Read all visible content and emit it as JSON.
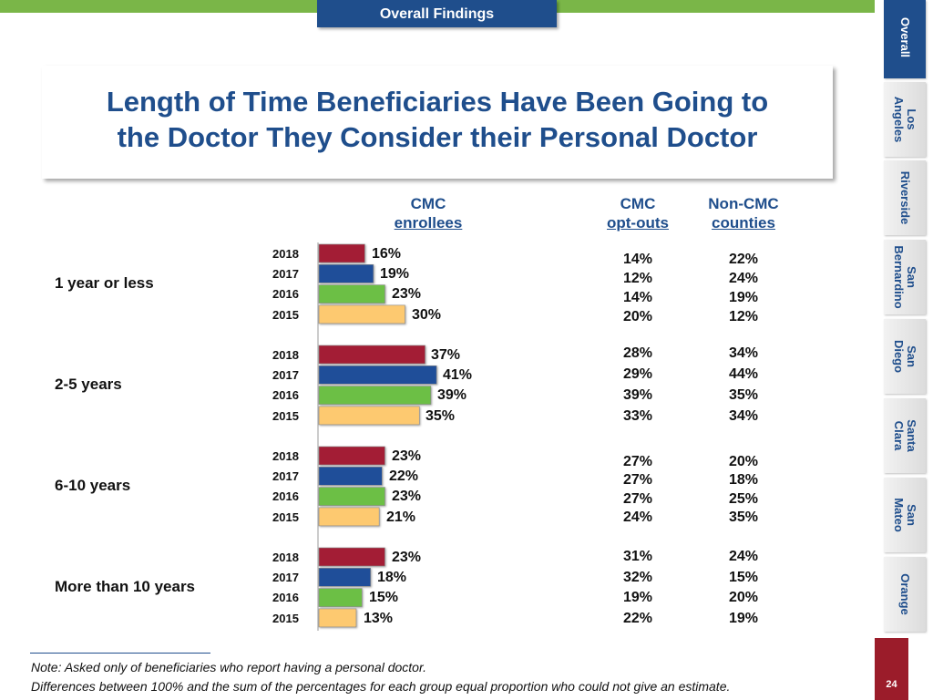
{
  "header": {
    "tab_label": "Overall Findings"
  },
  "side_tabs": [
    "Overall",
    "Los\nAngeles",
    "Riverside",
    "San\nBernardino",
    "San\nDiego",
    "Santa\nClara",
    "San\nMateo",
    "Orange"
  ],
  "title_line1": "Length of Time Beneficiaries Have Been Going to",
  "title_line2": "the Doctor They Consider their Personal Doctor",
  "columns": {
    "cmc_enrollees": {
      "line1": "CMC",
      "line2": "enrollees"
    },
    "cmc_optouts": {
      "line1": "CMC",
      "line2": "opt-outs"
    },
    "noncmc": {
      "line1": "Non-CMC",
      "line2": "counties"
    }
  },
  "colors": {
    "2018": "#a31d35",
    "2017": "#1f4e99",
    "2016": "#6cbf45",
    "2015": "#fdc970"
  },
  "page_number": "24",
  "note": {
    "line1": "Note: Asked only of beneficiaries who report having a personal doctor.",
    "line2": "Differences between 100% and the sum of the percentages for each group equal proportion who could not give an estimate."
  },
  "chart_data": {
    "type": "bar",
    "orientation": "horizontal",
    "title": "Length of Time Beneficiaries Have Been Going to the Doctor They Consider their Personal Doctor",
    "years": [
      "2018",
      "2017",
      "2016",
      "2015"
    ],
    "groups": [
      {
        "label": "1 year or less",
        "cmc_enrollees": [
          16,
          19,
          23,
          30
        ],
        "cmc_enrollees_labels": [
          "16%",
          "19%",
          "23%",
          "30%"
        ],
        "cmc_optouts": [
          "14%",
          "12%",
          "14%",
          "20%"
        ],
        "noncmc": [
          "22%",
          "24%",
          "19%",
          "12%"
        ]
      },
      {
        "label": "2-5 years",
        "cmc_enrollees": [
          37,
          41,
          39,
          35
        ],
        "cmc_enrollees_labels": [
          "37%",
          "41%",
          "39%",
          "35%"
        ],
        "cmc_optouts": [
          "28%",
          "29%",
          "39%",
          "33%"
        ],
        "noncmc": [
          "34%",
          "44%",
          "35%",
          "34%"
        ]
      },
      {
        "label": "6-10 years",
        "cmc_enrollees": [
          23,
          22,
          23,
          21
        ],
        "cmc_enrollees_labels": [
          "23%",
          "22%",
          "23%",
          "21%"
        ],
        "cmc_optouts": [
          "27%",
          "27%",
          "27%",
          "24%"
        ],
        "noncmc": [
          "20%",
          "18%",
          "25%",
          "35%"
        ]
      },
      {
        "label": "More than 10 years",
        "cmc_enrollees": [
          23,
          18,
          15,
          13
        ],
        "cmc_enrollees_labels": [
          "23%",
          "18%",
          "15%",
          "13%"
        ],
        "cmc_optouts": [
          "31%",
          "32%",
          "19%",
          "22%"
        ],
        "noncmc": [
          "24%",
          "15%",
          "20%",
          "19%"
        ]
      }
    ]
  }
}
